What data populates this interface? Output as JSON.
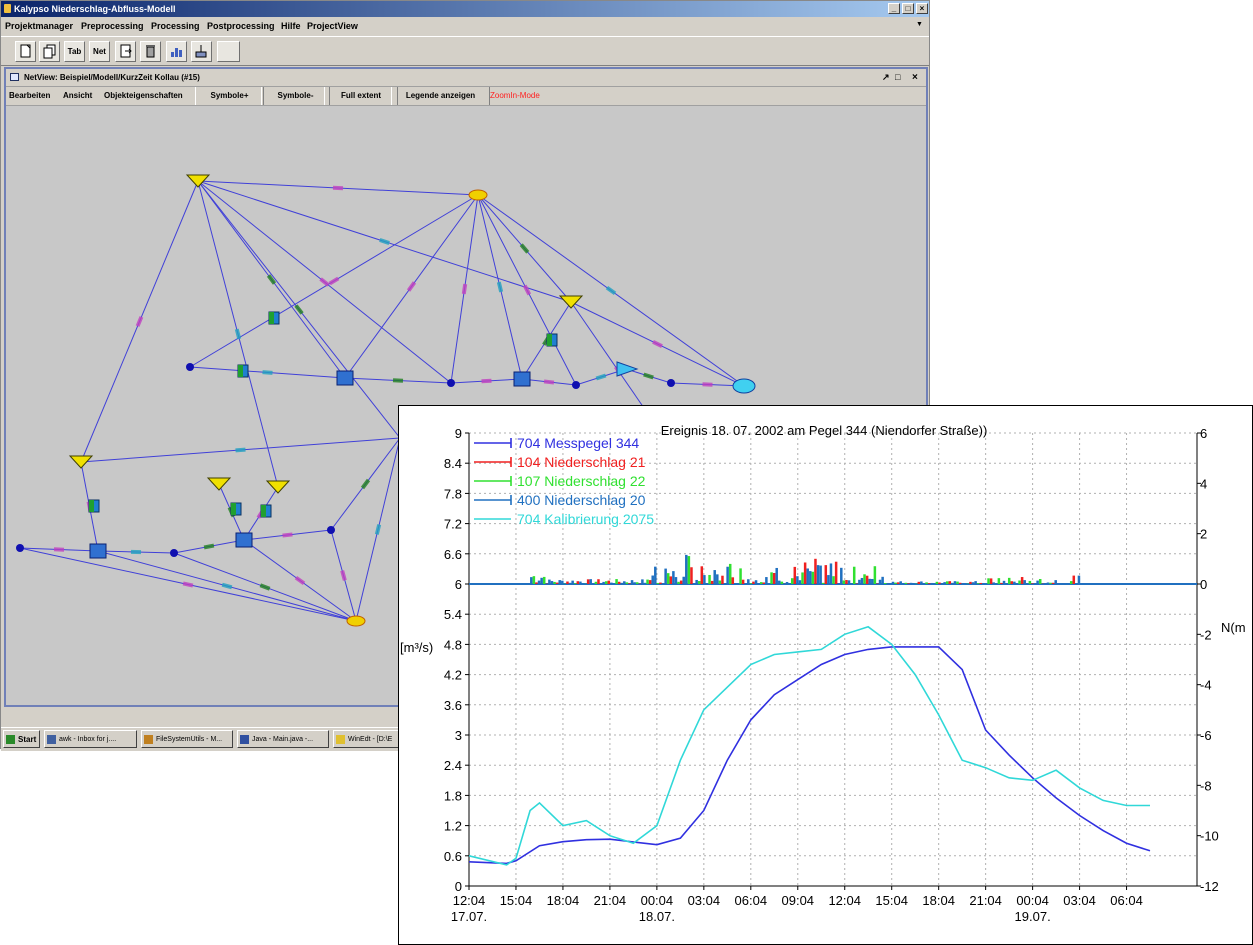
{
  "window": {
    "title": "Kalypso Niederschlag-Abfluss-Modell",
    "controls": [
      "_",
      "□",
      "×"
    ]
  },
  "menubar": {
    "items": [
      "Projektmanager",
      "Preprocessing",
      "Processing",
      "Postprocessing",
      "Hilfe",
      "ProjectView"
    ],
    "overflow": "▼"
  },
  "toolbar": {
    "buttons": [
      {
        "label": "",
        "icon": "new-file-icon"
      },
      {
        "label": "",
        "icon": "copy-file-icon"
      },
      {
        "label": "Tab",
        "icon": ""
      },
      {
        "label": "Net",
        "icon": ""
      },
      {
        "label": "",
        "icon": "export-file-icon"
      },
      {
        "label": "",
        "icon": "delete-icon"
      },
      {
        "label": "",
        "icon": "chart-icon"
      },
      {
        "label": "",
        "icon": "edit-chart-icon"
      },
      {
        "label": "",
        "icon": ""
      }
    ]
  },
  "netview": {
    "title": "NetView: Beispiel/Modell/KurzZeit Kollau (#15)",
    "window_controls": [
      "↗",
      "□",
      "×"
    ],
    "menu": [
      "Bearbeiten",
      "Ansicht",
      "Objekteigenschaften"
    ],
    "buttons": [
      "Symbole+",
      "Symbole-",
      "Full extent",
      "Legende anzeigen"
    ],
    "mode": "ZoomIn-Mode",
    "mode_color": "#ff2020",
    "line_color": "#4040d8",
    "node_color": "#1010b0"
  },
  "taskbar": {
    "start_label": "Start",
    "tasks": [
      "awk - Inbox for j....",
      "FileSystemUtils - M...",
      "Java - Main.java -...",
      "WinEdt - [D:\\E"
    ]
  },
  "chart_data": {
    "type": "line",
    "title": "Ereignis 18. 07. 2002 am Pegel 344 (Niendorfer Straße))",
    "ylabel_left": "[m³/s)",
    "ylabel_right": "N(m",
    "x_ticks": [
      "12:04",
      "15:04",
      "18:04",
      "21:04",
      "00:04",
      "03:04",
      "06:04",
      "09:04",
      "12:04",
      "15:04",
      "18:04",
      "21:04",
      "00:04",
      "03:04",
      "06:04"
    ],
    "x_dates": [
      {
        "tick": 0,
        "label": "17.07."
      },
      {
        "tick": 4,
        "label": "18.07."
      },
      {
        "tick": 12,
        "label": "19.07."
      }
    ],
    "y_left_ticks": [
      "9",
      "8.4",
      "7.8",
      "7.2",
      "6.6",
      "6",
      "5.4",
      "4.8",
      "4.2",
      "3.6",
      "3",
      "2.4",
      "1.8",
      "1.2",
      "0.6",
      "0"
    ],
    "y_left_range": [
      0,
      9
    ],
    "y_right_ticks": [
      "6",
      "4",
      "2",
      "0",
      "-2",
      "-4",
      "-6",
      "-8",
      "-10",
      "-12"
    ],
    "y_right_range": [
      -12,
      6
    ],
    "grid": true,
    "legend_position": "top-left",
    "series": [
      {
        "name": "704 Messpegel 344",
        "color": "#3030e0",
        "x": [
          0,
          0.8,
          1,
          1.5,
          2,
          2.5,
          3,
          4,
          4.5,
          5,
          5.5,
          6,
          6.5,
          7,
          7.5,
          8,
          8.5,
          9,
          9.5,
          10,
          10.5,
          11,
          11.5,
          12,
          12.5,
          13,
          13.5,
          14,
          14.5
        ],
        "y": [
          0.48,
          0.45,
          0.5,
          0.8,
          0.88,
          0.92,
          0.93,
          0.82,
          0.95,
          1.5,
          2.5,
          3.3,
          3.8,
          4.1,
          4.4,
          4.6,
          4.7,
          4.75,
          4.75,
          4.75,
          4.3,
          3.1,
          2.6,
          2.15,
          1.75,
          1.4,
          1.1,
          0.85,
          0.7
        ]
      },
      {
        "name": "704 Kalibrierung 2075",
        "color": "#30d8d8",
        "x": [
          0,
          0.8,
          1,
          1.3,
          1.5,
          2,
          2.5,
          3,
          3.5,
          4,
          4.5,
          5,
          5.5,
          6,
          6.5,
          7,
          7.5,
          8,
          8.5,
          9,
          9.5,
          10,
          10.5,
          11,
          11.5,
          12,
          12.5,
          13,
          13.5,
          14,
          14.5
        ],
        "y": [
          0.6,
          0.42,
          0.55,
          1.5,
          1.65,
          1.2,
          1.3,
          1.0,
          0.85,
          1.2,
          2.5,
          3.5,
          3.95,
          4.4,
          4.6,
          4.65,
          4.7,
          5.0,
          5.15,
          4.8,
          4.2,
          3.4,
          2.5,
          2.35,
          2.15,
          2.1,
          2.3,
          1.95,
          1.7,
          1.6,
          1.6
        ]
      },
      {
        "name": "104 Niederschlag 21",
        "color": "#f02020",
        "x": [],
        "y": []
      },
      {
        "name": "107 Niederschlag 22",
        "color": "#30e030",
        "x": [],
        "y": []
      },
      {
        "name": "400 Niederschlag 20",
        "color": "#2070c0",
        "x": [],
        "y": []
      }
    ]
  }
}
